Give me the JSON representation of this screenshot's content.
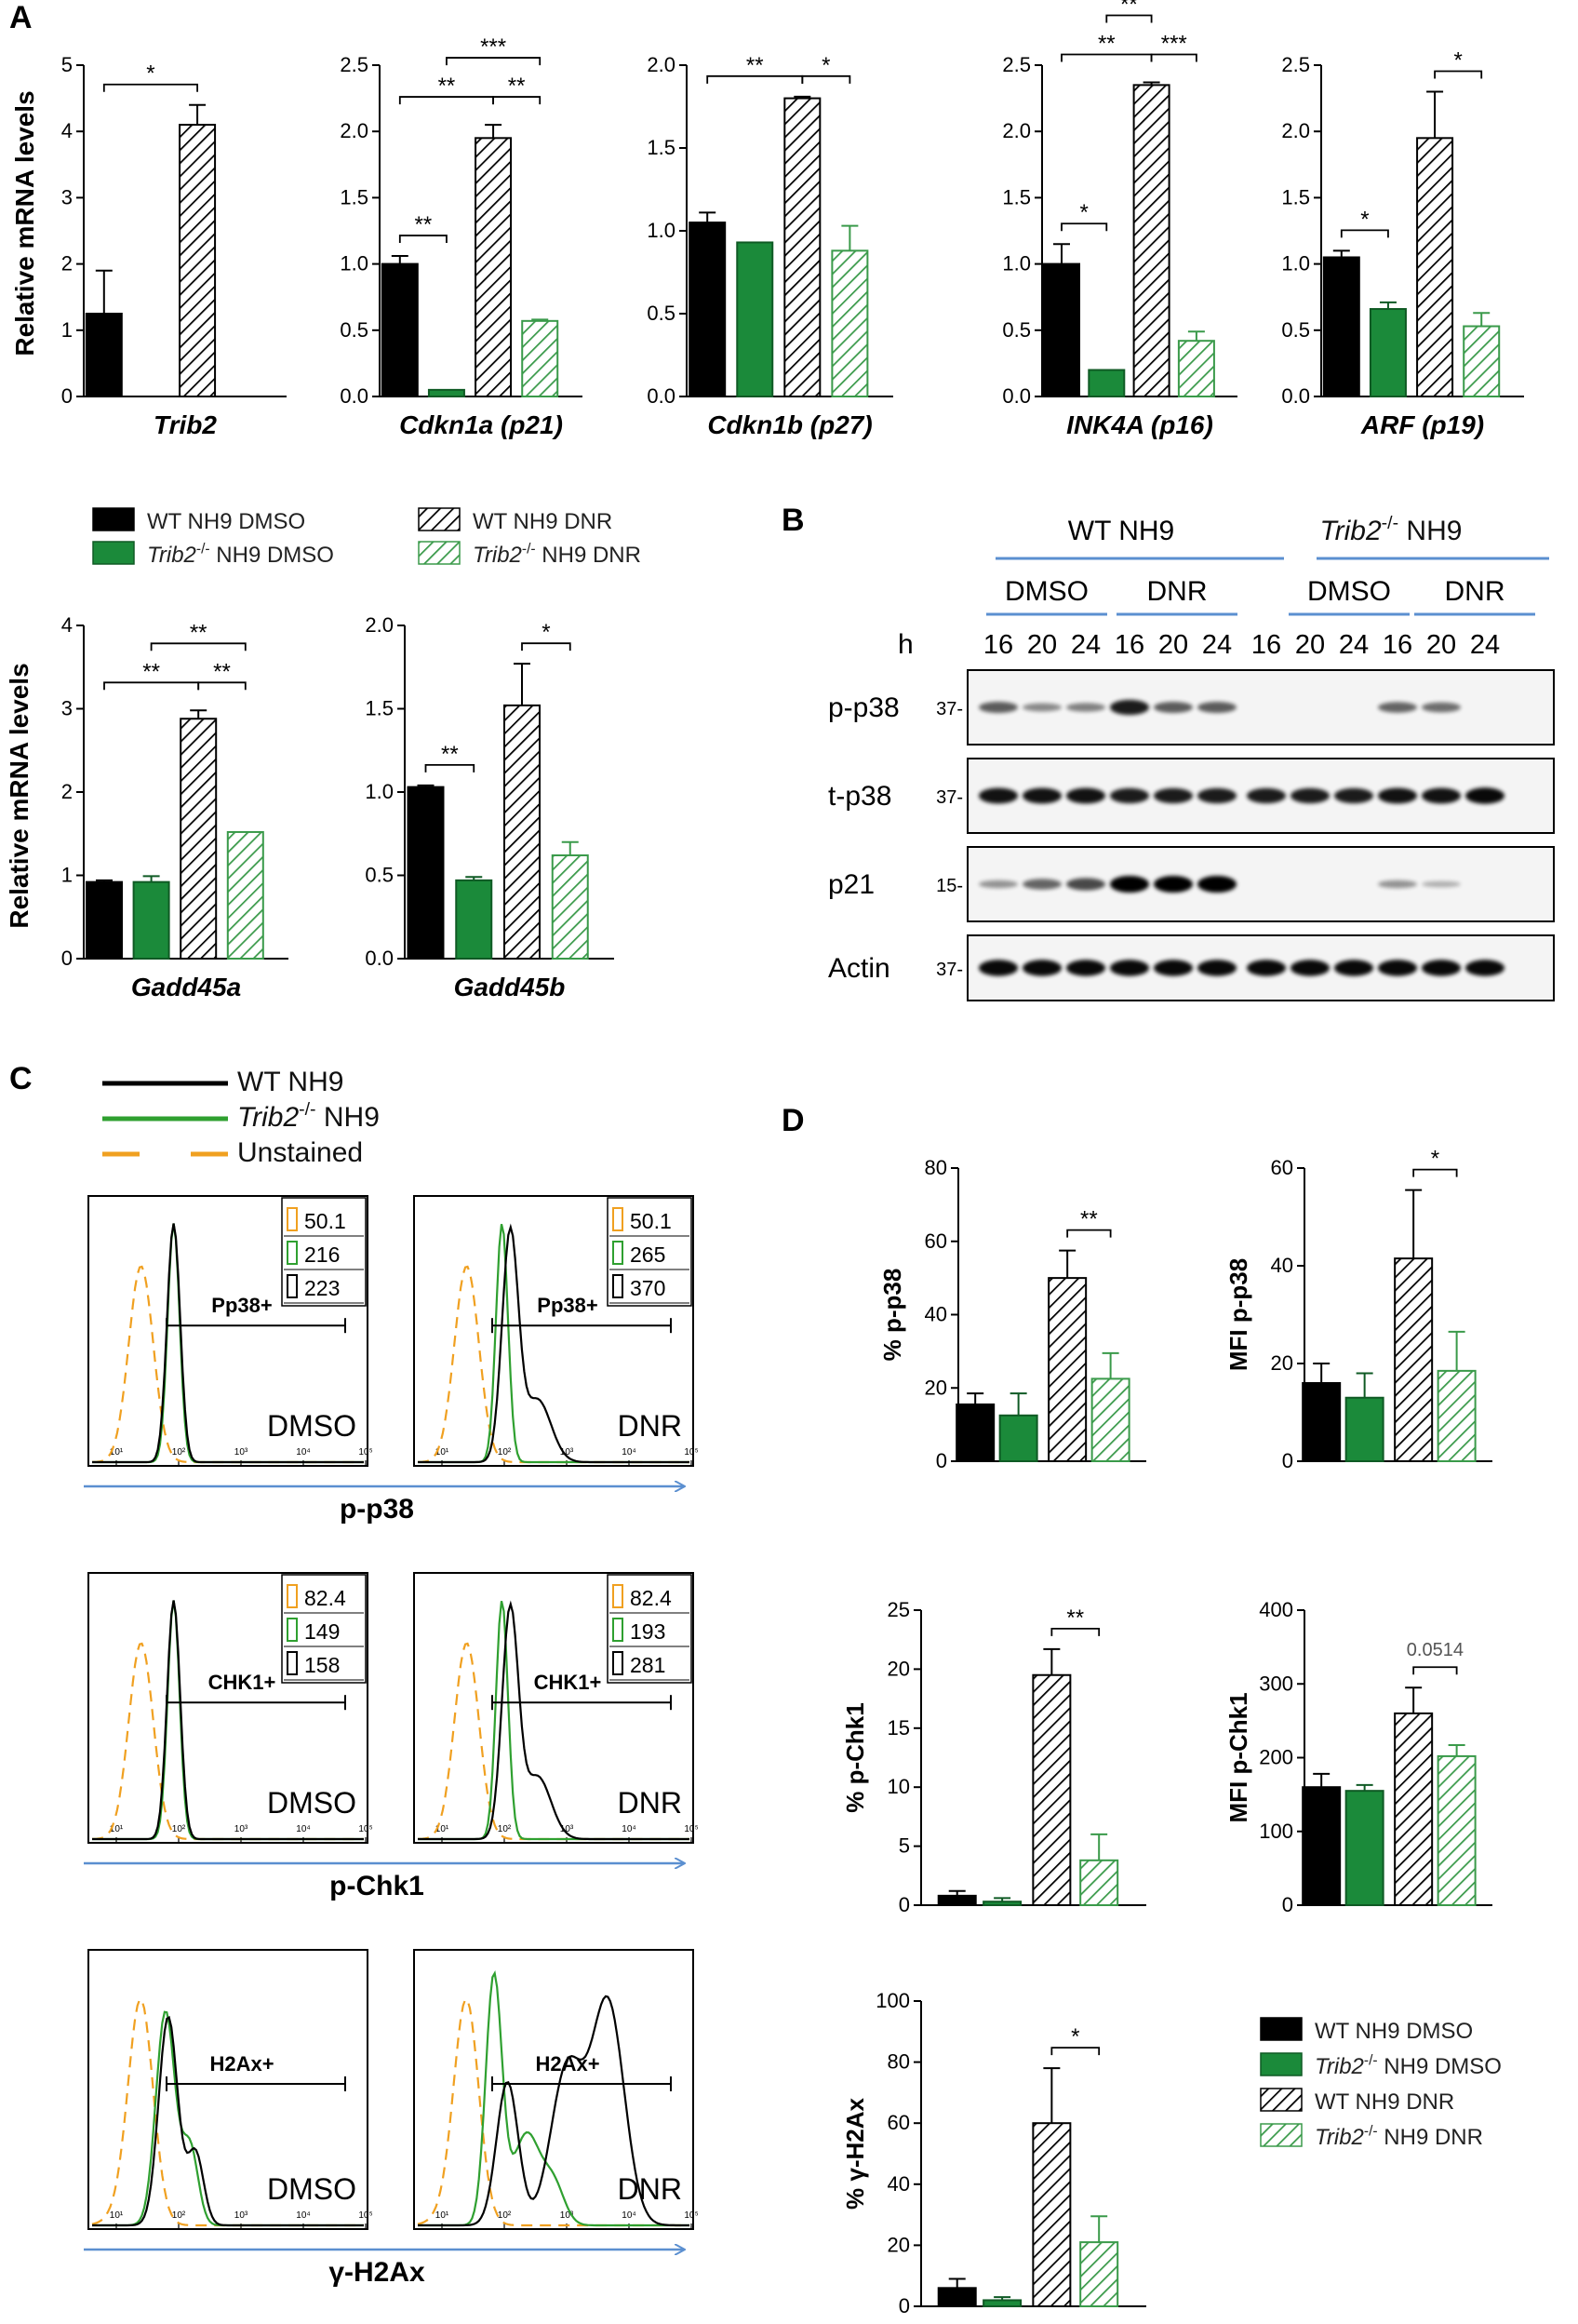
{
  "colors": {
    "wt": "#000000",
    "ko": "#1b8a3a",
    "unstained": "#f0a020",
    "arrow": "#5b8fd0",
    "hatch_green": "#3a9a4a"
  },
  "panels": {
    "A": "A",
    "B": "B",
    "C": "C",
    "D": "D"
  },
  "panelA": {
    "ylabel_top": "Relative mRNA levels",
    "ylabel_bottom": "Relative mRNA levels",
    "legend": [
      {
        "label": "WT NH9 DMSO",
        "style": "wt_solid"
      },
      {
        "label": "Trib2-/- NH9 DMSO",
        "style": "ko_solid"
      },
      {
        "label": "WT NH9 DNR",
        "style": "wt_hatch"
      },
      {
        "label": "Trib2-/- NH9 DNR",
        "style": "ko_hatch"
      }
    ]
  },
  "panelB": {
    "group_wt": "WT NH9",
    "group_ko": "Trib2-/- NH9",
    "treatments": [
      "DMSO",
      "DNR",
      "DMSO",
      "DNR"
    ],
    "h_label": "h",
    "times": [
      "16",
      "20",
      "24",
      "16",
      "20",
      "24",
      "16",
      "20",
      "24",
      "16",
      "20",
      "24"
    ],
    "blots": [
      {
        "label": "p-p38",
        "mw": "37-",
        "intensity": [
          0.5,
          0.25,
          0.3,
          0.85,
          0.5,
          0.5,
          0,
          0,
          0,
          0.45,
          0.4,
          0
        ]
      },
      {
        "label": "t-p38",
        "mw": "37-",
        "intensity": [
          0.9,
          0.9,
          0.9,
          0.85,
          0.85,
          0.85,
          0.85,
          0.85,
          0.85,
          0.9,
          0.9,
          0.95
        ]
      },
      {
        "label": "p21",
        "mw": "15-",
        "intensity": [
          0.2,
          0.45,
          0.6,
          1,
          1,
          1,
          0,
          0,
          0,
          0.2,
          0.05,
          0
        ]
      },
      {
        "label": "Actin",
        "mw": "37-",
        "intensity": [
          0.95,
          0.95,
          0.95,
          0.95,
          0.95,
          0.95,
          0.95,
          0.95,
          0.95,
          0.95,
          0.95,
          0.95
        ]
      }
    ]
  },
  "panelC": {
    "legend": [
      {
        "label": "WT NH9",
        "key": "wt"
      },
      {
        "label": "Trib2-/- NH9",
        "key": "ko"
      },
      {
        "label": "Unstained",
        "key": "un"
      }
    ],
    "rows": [
      {
        "marker": "p-p38",
        "gate": "Pp38+",
        "plots": [
          {
            "treatment": "DMSO",
            "values": [
              "50.1",
              "216",
              "223"
            ]
          },
          {
            "treatment": "DNR",
            "values": [
              "50.1",
              "265",
              "370"
            ]
          }
        ]
      },
      {
        "marker": "p-Chk1",
        "gate": "CHK1+",
        "plots": [
          {
            "treatment": "DMSO",
            "values": [
              "82.4",
              "149",
              "158"
            ]
          },
          {
            "treatment": "DNR",
            "values": [
              "82.4",
              "193",
              "281"
            ]
          }
        ]
      },
      {
        "marker": "γ-H2Ax",
        "gate": "H2Ax+",
        "plots": [
          {
            "treatment": "DMSO",
            "values": [],
            "show_box": false
          },
          {
            "treatment": "DNR",
            "values": [],
            "show_box": false
          }
        ]
      }
    ],
    "ticks": [
      "10¹",
      "10²",
      "10³",
      "10⁴",
      "10⁵"
    ]
  },
  "panelD": {
    "legend": [
      {
        "label": "WT NH9 DMSO",
        "style": "wt_solid"
      },
      {
        "label": "Trib2-/- NH9 DMSO",
        "style": "ko_solid"
      },
      {
        "label": "WT NH9 DNR",
        "style": "wt_hatch"
      },
      {
        "label": "Trib2-/- NH9 DNR",
        "style": "ko_hatch"
      }
    ]
  },
  "chart_data": [
    {
      "id": "trib2",
      "type": "bar",
      "panel": "A",
      "xlabel": "Trib2",
      "categories": [
        "WT NH9 DMSO",
        "Trib2-/- NH9 DMSO",
        "WT NH9 DNR",
        "Trib2-/- NH9 DNR"
      ],
      "values": [
        1.25,
        0,
        4.1,
        0
      ],
      "errors": [
        0.65,
        0,
        0.3,
        0
      ],
      "ylim": [
        0,
        5
      ],
      "yticks": [
        "0",
        "1",
        "2",
        "3",
        "4",
        "5"
      ],
      "sig": [
        {
          "a": 0,
          "b": 2,
          "level": 1,
          "label": "*"
        }
      ]
    },
    {
      "id": "cdkn1a",
      "type": "bar",
      "panel": "A",
      "xlabel": "Cdkn1a (p21)",
      "categories": [
        "WT NH9 DMSO",
        "Trib2-/- NH9 DMSO",
        "WT NH9 DNR",
        "Trib2-/- NH9 DNR"
      ],
      "values": [
        1.0,
        0.05,
        1.95,
        0.57
      ],
      "errors": [
        0.06,
        0,
        0.1,
        0.01
      ],
      "ylim": [
        0,
        2.5
      ],
      "yticks": [
        "0.0",
        "0.5",
        "1.0",
        "1.5",
        "2.0",
        "2.5"
      ],
      "sig": [
        {
          "a": 0,
          "b": 1,
          "level": 0,
          "label": "**"
        },
        {
          "a": 0,
          "b": 2,
          "level": 1,
          "label": "**"
        },
        {
          "a": 2,
          "b": 3,
          "level": 1,
          "label": "**"
        },
        {
          "a": 1,
          "b": 3,
          "level": 2,
          "label": "***"
        }
      ]
    },
    {
      "id": "cdkn1b",
      "type": "bar",
      "panel": "A",
      "xlabel": "Cdkn1b (p27)",
      "categories": [
        "WT NH9 DMSO",
        "Trib2-/- NH9 DMSO",
        "WT NH9 DNR",
        "Trib2-/- NH9 DNR"
      ],
      "values": [
        1.05,
        0.93,
        1.8,
        0.88
      ],
      "errors": [
        0.06,
        0,
        0.01,
        0.15
      ],
      "ylim": [
        0,
        2.0
      ],
      "yticks": [
        "0.0",
        "0.5",
        "1.0",
        "1.5",
        "2.0"
      ],
      "sig": [
        {
          "a": 0,
          "b": 2,
          "level": 1,
          "label": "**"
        },
        {
          "a": 2,
          "b": 3,
          "level": 1,
          "label": "*"
        }
      ]
    },
    {
      "id": "ink4a",
      "type": "bar",
      "panel": "A",
      "xlabel": "INK4A (p16)",
      "categories": [
        "WT NH9 DMSO",
        "Trib2-/- NH9 DMSO",
        "WT NH9 DNR",
        "Trib2-/- NH9 DNR"
      ],
      "values": [
        1.0,
        0.2,
        2.35,
        0.42
      ],
      "errors": [
        0.15,
        0,
        0.02,
        0.07
      ],
      "ylim": [
        0,
        2.5
      ],
      "yticks": [
        "0.0",
        "0.5",
        "1.0",
        "1.5",
        "2.0",
        "2.5"
      ],
      "sig": [
        {
          "a": 0,
          "b": 1,
          "level": 0,
          "label": "*"
        },
        {
          "a": 0,
          "b": 2,
          "level": 1,
          "label": "**"
        },
        {
          "a": 2,
          "b": 3,
          "level": 1,
          "label": "***"
        },
        {
          "a": 1,
          "b": 2,
          "level": 2,
          "label": "**"
        }
      ]
    },
    {
      "id": "arf",
      "type": "bar",
      "panel": "A",
      "xlabel": "ARF (p19)",
      "categories": [
        "WT NH9 DMSO",
        "Trib2-/- NH9 DMSO",
        "WT NH9 DNR",
        "Trib2-/- NH9 DNR"
      ],
      "values": [
        1.05,
        0.66,
        1.95,
        0.53
      ],
      "errors": [
        0.05,
        0.05,
        0.35,
        0.1
      ],
      "ylim": [
        0,
        2.5
      ],
      "yticks": [
        "0.0",
        "0.5",
        "1.0",
        "1.5",
        "2.0",
        "2.5"
      ],
      "sig": [
        {
          "a": 0,
          "b": 1,
          "level": 0,
          "label": "*"
        },
        {
          "a": 2,
          "b": 3,
          "level": 1,
          "label": "*"
        }
      ]
    },
    {
      "id": "gadd45a",
      "type": "bar",
      "panel": "A",
      "xlabel": "Gadd45a",
      "categories": [
        "WT NH9 DMSO",
        "Trib2-/- NH9 DMSO",
        "WT NH9 DNR",
        "Trib2-/- NH9 DNR"
      ],
      "values": [
        0.92,
        0.92,
        2.88,
        1.52
      ],
      "errors": [
        0.02,
        0.07,
        0.1,
        0
      ],
      "ylim": [
        0,
        4
      ],
      "yticks": [
        "0",
        "1",
        "2",
        "3",
        "4"
      ],
      "sig": [
        {
          "a": 0,
          "b": 2,
          "level": 1,
          "label": "**"
        },
        {
          "a": 2,
          "b": 3,
          "level": 1,
          "label": "**"
        },
        {
          "a": 1,
          "b": 3,
          "level": 2,
          "label": "**"
        }
      ]
    },
    {
      "id": "gadd45b",
      "type": "bar",
      "panel": "A",
      "xlabel": "Gadd45b",
      "categories": [
        "WT NH9 DMSO",
        "Trib2-/- NH9 DMSO",
        "WT NH9 DNR",
        "Trib2-/- NH9 DNR"
      ],
      "values": [
        1.03,
        0.47,
        1.52,
        0.62
      ],
      "errors": [
        0.01,
        0.02,
        0.25,
        0.08
      ],
      "ylim": [
        0,
        2.0
      ],
      "yticks": [
        "0.0",
        "0.5",
        "1.0",
        "1.5",
        "2.0"
      ],
      "sig": [
        {
          "a": 0,
          "b": 1,
          "level": 0,
          "label": "**"
        },
        {
          "a": 2,
          "b": 3,
          "level": 1,
          "label": "*"
        }
      ]
    },
    {
      "id": "pp38pct",
      "type": "bar",
      "panel": "D",
      "ylabel": "% p-p38",
      "categories": [
        "WT NH9 DMSO",
        "Trib2-/- NH9 DMSO",
        "WT NH9 DNR",
        "Trib2-/- NH9 DNR"
      ],
      "values": [
        15.5,
        12.5,
        50,
        22.5
      ],
      "errors": [
        3,
        6,
        7.5,
        7
      ],
      "ylim": [
        0,
        80
      ],
      "yticks": [
        "0",
        "20",
        "40",
        "60",
        "80"
      ],
      "sig": [
        {
          "a": 2,
          "b": 3,
          "level": 0,
          "label": "**"
        }
      ]
    },
    {
      "id": "pp38mfi",
      "type": "bar",
      "panel": "D",
      "ylabel": "MFI p-p38",
      "categories": [
        "WT NH9 DMSO",
        "Trib2-/- NH9 DMSO",
        "WT NH9 DNR",
        "Trib2-/- NH9 DNR"
      ],
      "values": [
        16,
        13,
        41.5,
        18.5
      ],
      "errors": [
        4,
        5,
        14,
        8
      ],
      "ylim": [
        0,
        60
      ],
      "yticks": [
        "0",
        "20",
        "40",
        "60"
      ],
      "sig": [
        {
          "a": 2,
          "b": 3,
          "level": 0,
          "label": "*"
        }
      ]
    },
    {
      "id": "pchk1pct",
      "type": "bar",
      "panel": "D",
      "ylabel": "% p-Chk1",
      "categories": [
        "WT NH9 DMSO",
        "Trib2-/- NH9 DMSO",
        "WT NH9 DNR",
        "Trib2-/- NH9 DNR"
      ],
      "values": [
        0.8,
        0.3,
        19.5,
        3.8
      ],
      "errors": [
        0.4,
        0.3,
        2.2,
        2.2
      ],
      "ylim": [
        0,
        25
      ],
      "yticks": [
        "0",
        "5",
        "10",
        "15",
        "20",
        "25"
      ],
      "sig": [
        {
          "a": 2,
          "b": 3,
          "level": 0,
          "label": "**"
        }
      ]
    },
    {
      "id": "pchk1mfi",
      "type": "bar",
      "panel": "D",
      "ylabel": "MFI p-Chk1",
      "categories": [
        "WT NH9 DMSO",
        "Trib2-/- NH9 DMSO",
        "WT NH9 DNR",
        "Trib2-/- NH9 DNR"
      ],
      "values": [
        160,
        155,
        260,
        202
      ],
      "errors": [
        18,
        8,
        35,
        15
      ],
      "ylim": [
        0,
        400
      ],
      "yticks": [
        "0",
        "100",
        "200",
        "300",
        "400"
      ],
      "sig": [
        {
          "a": 2,
          "b": 3,
          "level": 0,
          "label": "0.0514"
        }
      ]
    },
    {
      "id": "h2axpct",
      "type": "bar",
      "panel": "D",
      "ylabel": "% γ-H2Ax",
      "categories": [
        "WT NH9 DMSO",
        "Trib2-/- NH9 DMSO",
        "WT NH9 DNR",
        "Trib2-/- NH9 DNR"
      ],
      "values": [
        6,
        2,
        60,
        21
      ],
      "errors": [
        3,
        1,
        18,
        8.5
      ],
      "ylim": [
        0,
        100
      ],
      "yticks": [
        "0",
        "20",
        "40",
        "60",
        "80",
        "100"
      ],
      "sig": [
        {
          "a": 2,
          "b": 3,
          "level": 0,
          "label": "*"
        }
      ]
    }
  ]
}
